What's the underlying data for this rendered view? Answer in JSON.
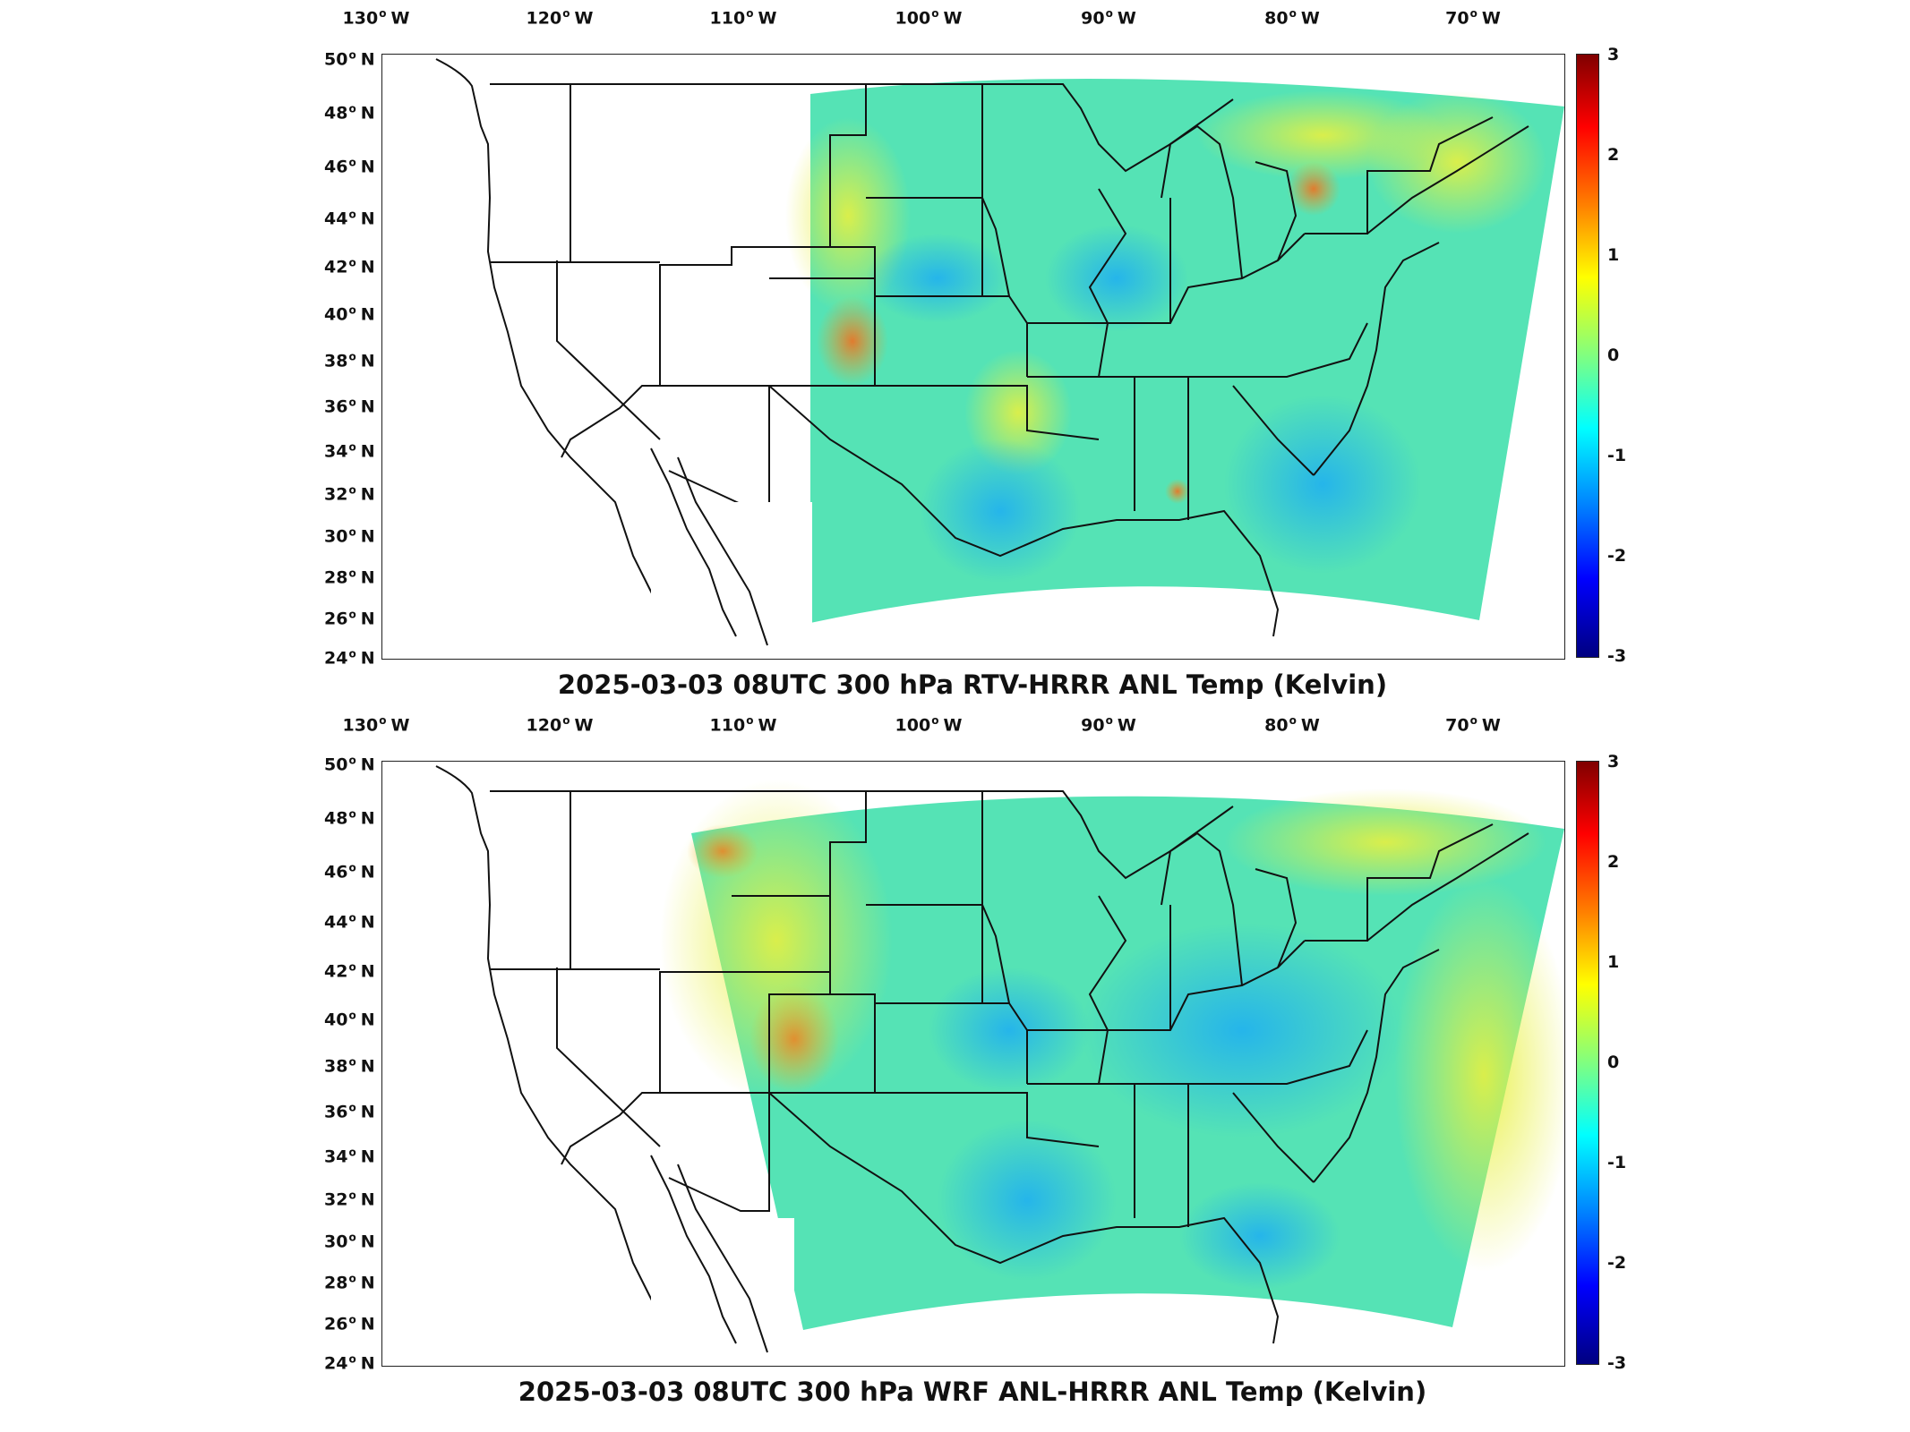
{
  "panels": [
    {
      "title": "2025-03-03 08UTC 300 hPa RTV-HRRR ANL Temp (Kelvin)",
      "lon_ticks": [
        "130",
        "120",
        "110",
        "100",
        "90",
        "80",
        "70"
      ],
      "lon_suffix": "W",
      "lat_ticks": [
        "50",
        "48",
        "46",
        "44",
        "42",
        "40",
        "38",
        "36",
        "34",
        "32",
        "30",
        "28",
        "26",
        "24"
      ],
      "lat_suffix": "N",
      "colorbar_ticks": [
        "3",
        "2",
        "1",
        "0",
        "-1",
        "-2",
        "-3"
      ]
    },
    {
      "title": "2025-03-03 08UTC 300 hPa WRF ANL-HRRR ANL Temp (Kelvin)",
      "lon_ticks": [
        "130",
        "120",
        "110",
        "100",
        "90",
        "80",
        "70"
      ],
      "lon_suffix": "W",
      "lat_ticks": [
        "50",
        "48",
        "46",
        "44",
        "42",
        "40",
        "38",
        "36",
        "34",
        "32",
        "30",
        "28",
        "26",
        "24"
      ],
      "lat_suffix": "N",
      "colorbar_ticks": [
        "3",
        "2",
        "1",
        "0",
        "-1",
        "-2",
        "-3"
      ]
    }
  ],
  "colors": {
    "field_base": "#4fe6b0",
    "field_warm": "#c8f060",
    "field_cool": "#40d8f0",
    "border": "#111111"
  },
  "colorbar_range": [
    -3,
    3
  ],
  "colormap": "jet"
}
